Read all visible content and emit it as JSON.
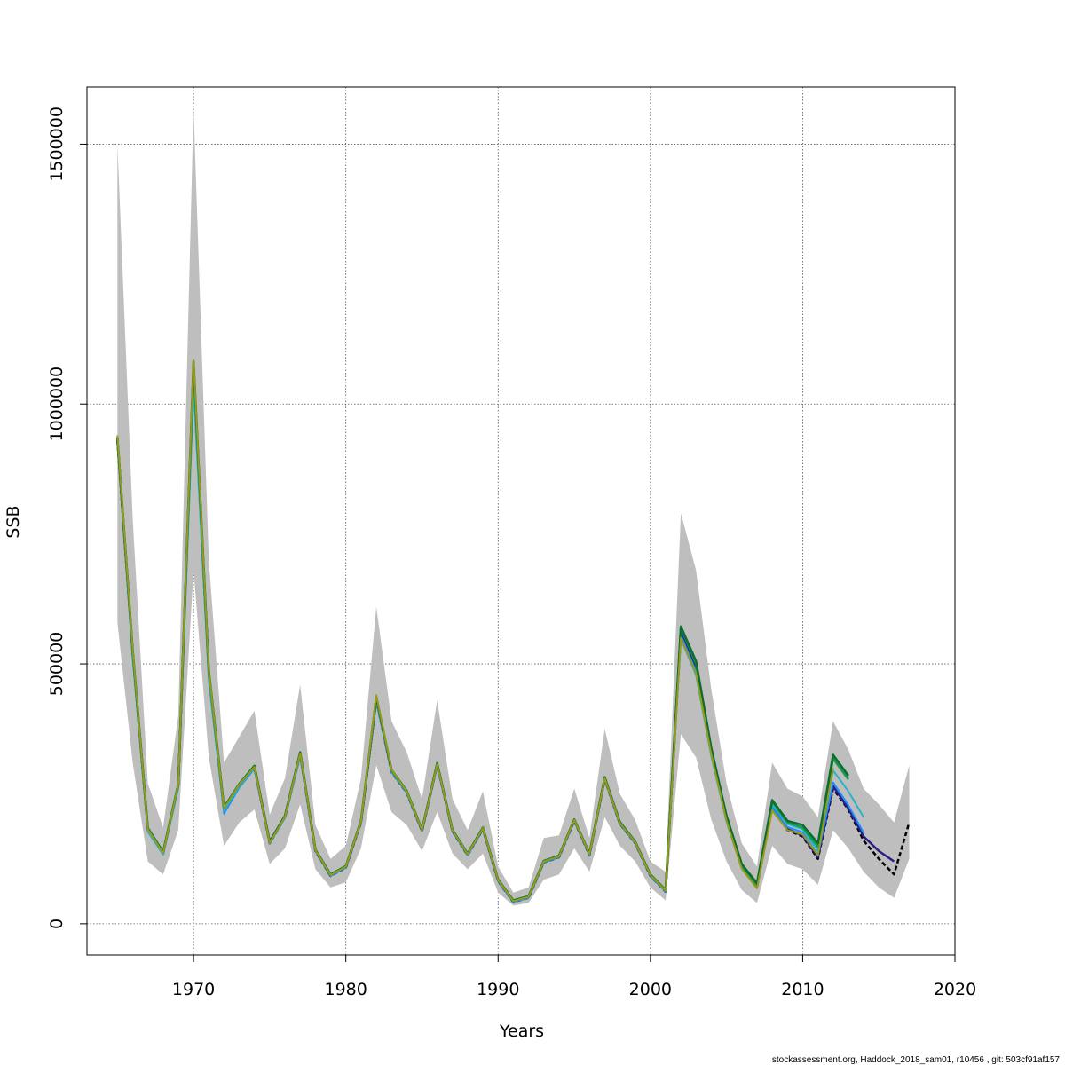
{
  "chart_data": {
    "type": "line",
    "title": "",
    "xlabel": "Years",
    "ylabel": "SSB",
    "xlim": [
      1963,
      2020
    ],
    "ylim": [
      -60000,
      1610000
    ],
    "grid": true,
    "x_ticks": [
      1970,
      1980,
      1990,
      2000,
      2010,
      2020
    ],
    "y_ticks": [
      0,
      500000,
      1000000,
      1500000
    ],
    "x_tick_labels": [
      "1970",
      "1980",
      "1990",
      "2000",
      "2010",
      "2020"
    ],
    "y_tick_labels": [
      "0",
      "500000",
      "1000000",
      "1500000"
    ],
    "confidence_band": {
      "color": "#bebebe",
      "x": [
        1965,
        1966,
        1967,
        1968,
        1969,
        1970,
        1971,
        1972,
        1973,
        1974,
        1975,
        1976,
        1977,
        1978,
        1979,
        1980,
        1981,
        1982,
        1983,
        1984,
        1985,
        1986,
        1987,
        1988,
        1989,
        1990,
        1991,
        1992,
        1993,
        1994,
        1995,
        1996,
        1997,
        1998,
        1999,
        2000,
        2001,
        2002,
        2003,
        2004,
        2005,
        2006,
        2007,
        2008,
        2009,
        2010,
        2011,
        2012,
        2013,
        2014,
        2015,
        2016,
        2017
      ],
      "upper": [
        1500000,
        780000,
        270000,
        185000,
        400000,
        1570000,
        700000,
        310000,
        360000,
        410000,
        210000,
        280000,
        460000,
        190000,
        125000,
        150000,
        280000,
        610000,
        390000,
        330000,
        240000,
        430000,
        240000,
        180000,
        255000,
        110000,
        60000,
        70000,
        165000,
        170000,
        260000,
        165000,
        375000,
        250000,
        200000,
        120000,
        100000,
        790000,
        680000,
        450000,
        270000,
        155000,
        110000,
        310000,
        260000,
        245000,
        205000,
        390000,
        335000,
        260000,
        230000,
        195000,
        305000
      ],
      "lower": [
        580000,
        310000,
        120000,
        95000,
        180000,
        680000,
        320000,
        150000,
        195000,
        220000,
        115000,
        145000,
        230000,
        105000,
        70000,
        80000,
        145000,
        305000,
        215000,
        190000,
        140000,
        215000,
        135000,
        105000,
        135000,
        60000,
        35000,
        40000,
        85000,
        95000,
        145000,
        100000,
        205000,
        150000,
        120000,
        70000,
        45000,
        365000,
        320000,
        200000,
        120000,
        65000,
        40000,
        150000,
        115000,
        105000,
        75000,
        180000,
        145000,
        100000,
        70000,
        50000,
        125000
      ]
    },
    "series": [
      {
        "color": "#000000",
        "width": 2.5,
        "dashed": true,
        "x": [
          1965,
          1966,
          1967,
          1968,
          1969,
          1970,
          1971,
          1972,
          1973,
          1974,
          1975,
          1976,
          1977,
          1978,
          1979,
          1980,
          1981,
          1982,
          1983,
          1984,
          1985,
          1986,
          1987,
          1988,
          1989,
          1990,
          1991,
          1992,
          1993,
          1994,
          1995,
          1996,
          1997,
          1998,
          1999,
          2000,
          2001,
          2002,
          2003,
          2004,
          2005,
          2006,
          2007,
          2008,
          2009,
          2010,
          2011,
          2012,
          2013,
          2014,
          2015,
          2016,
          2017
        ],
        "values": [
          930000,
          520000,
          180000,
          135000,
          265000,
          1065000,
          480000,
          220000,
          265000,
          300000,
          155000,
          205000,
          325000,
          140000,
          92000,
          108000,
          195000,
          430000,
          292000,
          252000,
          178000,
          305000,
          178000,
          132000,
          182000,
          82000,
          42000,
          50000,
          118000,
          128000,
          198000,
          132000,
          278000,
          192000,
          155000,
          92000,
          62000,
          560000,
          490000,
          330000,
          200000,
          108000,
          70000,
          225000,
          180000,
          168000,
          125000,
          260000,
          220000,
          160000,
          125000,
          95000,
          195000
        ]
      },
      {
        "color": "#2a1f8a",
        "width": 2.5,
        "dashed": false,
        "x": [
          1965,
          1966,
          1967,
          1968,
          1969,
          1970,
          1971,
          1972,
          1973,
          1974,
          1975,
          1976,
          1977,
          1978,
          1979,
          1980,
          1981,
          1982,
          1983,
          1984,
          1985,
          1986,
          1987,
          1988,
          1989,
          1990,
          1991,
          1992,
          1993,
          1994,
          1995,
          1996,
          1997,
          1998,
          1999,
          2000,
          2001,
          2002,
          2003,
          2004,
          2005,
          2006,
          2007,
          2008,
          2009,
          2010,
          2011,
          2012,
          2013,
          2014,
          2015,
          2016
        ],
        "values": [
          932000,
          522000,
          181000,
          136000,
          266000,
          1068000,
          482000,
          221000,
          266000,
          301000,
          156000,
          206000,
          326000,
          141000,
          93000,
          109000,
          196000,
          432000,
          293000,
          253000,
          179000,
          306000,
          179000,
          133000,
          183000,
          83000,
          43000,
          51000,
          119000,
          129000,
          199000,
          133000,
          279000,
          193000,
          156000,
          93000,
          63000,
          562000,
          492000,
          331000,
          201000,
          109000,
          71000,
          226000,
          182000,
          170000,
          128000,
          265000,
          222000,
          168000,
          140000,
          120000
        ]
      },
      {
        "color": "#1e8fff",
        "width": 2,
        "dashed": false,
        "x": [
          1965,
          1966,
          1967,
          1968,
          1969,
          1970,
          1971,
          1972,
          1973,
          1974,
          1975,
          1976,
          1977,
          1978,
          1979,
          1980,
          1981,
          1982,
          1983,
          1984,
          1985,
          1986,
          1987,
          1988,
          1989,
          1990,
          1991,
          1992,
          1993,
          1994,
          1995,
          1996,
          1997,
          1998,
          1999,
          2000,
          2001,
          2002,
          2003,
          2004,
          2005,
          2006,
          2007,
          2008,
          2009,
          2010,
          2011,
          2012,
          2013,
          2014
        ],
        "values": [
          930000,
          515000,
          178000,
          134000,
          262000,
          1040000,
          470000,
          212000,
          262000,
          298000,
          155000,
          204000,
          322000,
          140000,
          92000,
          108000,
          195000,
          428000,
          292000,
          252000,
          178000,
          304000,
          178000,
          132000,
          182000,
          82000,
          42000,
          50000,
          118000,
          128000,
          198000,
          132000,
          278000,
          192000,
          155000,
          92000,
          62000,
          555000,
          485000,
          326000,
          198000,
          107000,
          70000,
          222000,
          186000,
          176000,
          132000,
          272000,
          228000,
          175000
        ]
      },
      {
        "color": "#26b5c4",
        "width": 2,
        "dashed": false,
        "x": [
          1965,
          1966,
          1967,
          1968,
          1969,
          1970,
          1971,
          1972,
          1973,
          1974,
          1975,
          1976,
          1977,
          1978,
          1979,
          1980,
          1981,
          1982,
          1983,
          1984,
          1985,
          1986,
          1987,
          1988,
          1989,
          1990,
          1991,
          1992,
          1993,
          1994,
          1995,
          1996,
          1997,
          1998,
          1999,
          2000,
          2001,
          2002,
          2003,
          2004,
          2005,
          2006,
          2007,
          2008,
          2009,
          2010,
          2011,
          2012,
          2013,
          2014
        ],
        "values": [
          928000,
          512000,
          177000,
          133000,
          261000,
          1030000,
          468000,
          218000,
          264000,
          300000,
          156000,
          205000,
          324000,
          141000,
          93000,
          109000,
          196000,
          430000,
          293000,
          253000,
          179000,
          305000,
          179000,
          133000,
          183000,
          83000,
          43000,
          51000,
          119000,
          129000,
          199000,
          133000,
          279000,
          193000,
          156000,
          93000,
          63000,
          548000,
          478000,
          322000,
          196000,
          106000,
          69000,
          228000,
          192000,
          182000,
          140000,
          295000,
          255000,
          205000
        ]
      },
      {
        "color": "#1a9850",
        "width": 2.5,
        "dashed": false,
        "x": [
          1965,
          1966,
          1967,
          1968,
          1969,
          1970,
          1971,
          1972,
          1973,
          1974,
          1975,
          1976,
          1977,
          1978,
          1979,
          1980,
          1981,
          1982,
          1983,
          1984,
          1985,
          1986,
          1987,
          1988,
          1989,
          1990,
          1991,
          1992,
          1993,
          1994,
          1995,
          1996,
          1997,
          1998,
          1999,
          2000,
          2001,
          2002,
          2003,
          2004,
          2005,
          2006,
          2007,
          2008,
          2009,
          2010,
          2011,
          2012,
          2013
        ],
        "values": [
          935000,
          525000,
          183000,
          137000,
          268000,
          1075000,
          485000,
          223000,
          268000,
          303000,
          157000,
          207000,
          328000,
          142000,
          94000,
          110000,
          197000,
          435000,
          295000,
          255000,
          180000,
          308000,
          180000,
          134000,
          184000,
          84000,
          44000,
          52000,
          120000,
          130000,
          200000,
          134000,
          280000,
          194000,
          157000,
          94000,
          64000,
          570000,
          500000,
          335000,
          205000,
          112000,
          74000,
          235000,
          195000,
          185000,
          148000,
          318000,
          278000
        ]
      },
      {
        "color": "#0b6e2e",
        "width": 2.5,
        "dashed": false,
        "x": [
          1965,
          1966,
          1967,
          1968,
          1969,
          1970,
          1971,
          1972,
          1973,
          1974,
          1975,
          1976,
          1977,
          1978,
          1979,
          1980,
          1981,
          1982,
          1983,
          1984,
          1985,
          1986,
          1987,
          1988,
          1989,
          1990,
          1991,
          1992,
          1993,
          1994,
          1995,
          1996,
          1997,
          1998,
          1999,
          2000,
          2001,
          2002,
          2003,
          2004,
          2005,
          2006,
          2007,
          2008,
          2009,
          2010,
          2011,
          2012,
          2013
        ],
        "values": [
          936000,
          527000,
          184000,
          138000,
          269000,
          1082000,
          487000,
          224000,
          269000,
          304000,
          158000,
          208000,
          330000,
          143000,
          95000,
          111000,
          198000,
          437000,
          296000,
          256000,
          181000,
          309000,
          181000,
          135000,
          185000,
          85000,
          45000,
          53000,
          121000,
          131000,
          201000,
          135000,
          282000,
          196000,
          158000,
          95000,
          65000,
          572000,
          505000,
          338000,
          208000,
          115000,
          78000,
          238000,
          198000,
          190000,
          155000,
          325000,
          285000
        ]
      },
      {
        "color": "#9a9a1a",
        "width": 2,
        "dashed": false,
        "x": [
          1965,
          1966,
          1967,
          1968,
          1969,
          1970,
          1971,
          1972,
          1973,
          1974,
          1975,
          1976,
          1977,
          1978,
          1979,
          1980,
          1981,
          1982,
          1983,
          1984,
          1985,
          1986,
          1987,
          1988,
          1989,
          1990,
          1991,
          1992,
          1993,
          1994,
          1995,
          1996,
          1997,
          1998,
          1999,
          2000,
          2001,
          2002,
          2003,
          2004,
          2005,
          2006,
          2007,
          2008,
          2009,
          2010,
          2011,
          2012
        ],
        "values": [
          940000,
          528000,
          182000,
          136000,
          268000,
          1085000,
          486000,
          222000,
          268000,
          302000,
          156000,
          206000,
          328000,
          142000,
          94000,
          110000,
          197000,
          440000,
          296000,
          255000,
          180000,
          307000,
          180000,
          134000,
          184000,
          84000,
          44000,
          52000,
          120000,
          130000,
          200000,
          134000,
          280000,
          194000,
          157000,
          94000,
          64000,
          550000,
          482000,
          325000,
          198000,
          106000,
          68000,
          218000,
          180000,
          172000,
          132000,
          300000
        ]
      }
    ]
  },
  "footer_text": "stockassessment.org, Haddock_2018_sam01, r10456 , git: 503cf91af157"
}
